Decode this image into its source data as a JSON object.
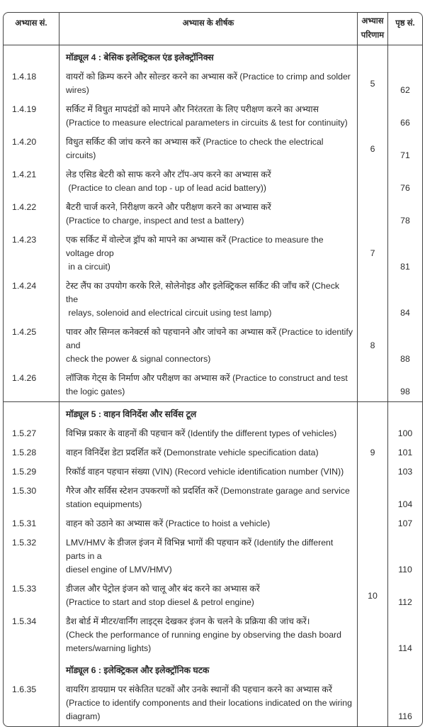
{
  "header": {
    "col_number": "अभ्यास सं.",
    "col_title": "अभ्यास के शीर्षक",
    "col_outcome_line1": "अभ्यास",
    "col_outcome_line2": "परिणाम",
    "col_page": "पृष्ठ सं."
  },
  "modules": [
    {
      "title": "मॉड्यूल 4 : बेसिक इलेक्ट्रिकल एंड इलेक्ट्रॉनिक्स"
    },
    {
      "title": "मॉड्यूल 5 : वाहन विनिर्देश और सर्विस टूल"
    },
    {
      "title": "मॉड्यूल 6 : इलेक्ट्रिकल और इलेक्ट्रॉनिक घटक"
    }
  ],
  "rows": [
    {
      "num": "1.4.18",
      "lines": [
        "वायरों को क्रिम्प करने और सोल्डर करने का अभ्यास करें (Practice to crimp and solder wires)"
      ],
      "outcome": "5",
      "page": "62"
    },
    {
      "num": "1.4.19",
      "lines": [
        "सर्किट में विधुत मापदंडों को मापने और निरंतरता के लिए परीक्षण करने का अभ्यास",
        "(Practice to measure electrical parameters in circuits & test for continuity)"
      ],
      "outcome": "",
      "page": "66"
    },
    {
      "num": "1.4.20",
      "lines": [
        "विधुत सर्किट की जांच करने का अभ्यास करें (Practice to check the electrical circuits)"
      ],
      "outcome": "6",
      "page": "71"
    },
    {
      "num": "1.4.21",
      "lines": [
        "लेड एसिड बेटरी को साफ करने और टॉप-अप करने का अभ्यास करें",
        " (Practice to clean and top - up of lead acid battery))"
      ],
      "outcome": "",
      "page": "76"
    },
    {
      "num": "1.4.22",
      "lines": [
        "बैटरी चार्ज करने, निरीक्षण करने और परीक्षण करने का अभ्यास करें",
        "(Practice to charge, inspect and test a battery)"
      ],
      "outcome": "",
      "page": "78"
    },
    {
      "num": "1.4.23",
      "lines": [
        "एक सर्किट में वोल्टेज ड्रॉप को मापने का अभ्यास करें (Practice to measure the voltage drop",
        " in a circuit)"
      ],
      "outcome": "7",
      "page": "81"
    },
    {
      "num": "1.4.24",
      "lines": [
        "टेस्ट लैंप का उपयोग करके रिले, सोलेनोइड और इलेक्ट्रिकल सर्किट की जाँच करें (Check the",
        " relays, solenoid and electrical circuit using test lamp)"
      ],
      "outcome": "",
      "page": "84"
    },
    {
      "num": "1.4.25",
      "lines": [
        "पावर और सिग्नल कनेक्टर्स को पहचानने और जांचने का अभ्यास करें (Practice to identify and",
        "check the power & signal connectors)"
      ],
      "outcome": "8",
      "page": "88"
    },
    {
      "num": "1.4.26",
      "lines": [
        "लॉजिक गेट्स के निर्माण और परीक्षण का अभ्यास करें (Practice to construct and test",
        "the logic gates)"
      ],
      "outcome": "",
      "page": "98"
    },
    {
      "num": "1.5.27",
      "lines": [
        "विभिन्न प्रकार के वाहनों की पहचान करें (Identify the different types of vehicles)"
      ],
      "outcome": "",
      "page": "100"
    },
    {
      "num": "1.5.28",
      "lines": [
        "वाहन विनिर्देश डेटा प्रदर्शित करें (Demonstrate vehicle specification data)"
      ],
      "outcome": "9",
      "page": "101"
    },
    {
      "num": "1.5.29",
      "lines": [
        "रिकॉर्ड वाहन पहचान संख्या (VIN) (Record vehicle identification number (VIN))"
      ],
      "outcome": "",
      "page": "103"
    },
    {
      "num": "1.5.30",
      "lines": [
        "गैरेज और सर्विस स्टेशन उपकरणों को प्रदर्शित करें (Demonstrate garage and service",
        "station equipments)"
      ],
      "outcome": "",
      "page": "104"
    },
    {
      "num": "1.5.31",
      "lines": [
        "वाहन को उठाने का अभ्यास करें (Practice to hoist a vehicle)"
      ],
      "outcome": "",
      "page": "107"
    },
    {
      "num": "1.5.32",
      "lines": [
        "LMV/HMV के डीजल इंजन में विभिन्न भागों की पहचान करें (Identify the different parts in a",
        "diesel engine of LMV/HMV)"
      ],
      "outcome": "",
      "page": "110"
    },
    {
      "num": "1.5.33",
      "lines": [
        "डीजल और पेट्रोल इंजन को चालू और बंद करने का अभ्यास करें",
        "(Practice to start and stop diesel & petrol engine)"
      ],
      "outcome": "10",
      "page": "112"
    },
    {
      "num": "1.5.34",
      "lines": [
        "डैश बोर्ड में मीटर/वार्निंग लाइट्स देखकर इंजन के चलने के प्रक्रिया की जांच करें।",
        "(Check the performance of running engine by observing the dash board",
        "meters/warning lights)"
      ],
      "outcome": "",
      "page": "114"
    },
    {
      "num": "1.6.35",
      "lines": [
        "वायरिंग डायग्राम पर संकेतित घटकों और उनके स्थानों की पहचान करने का अभ्यास करें",
        "(Practice to identify components and their locations indicated on the wiring",
        "diagram)"
      ],
      "outcome": "",
      "page": "116"
    }
  ]
}
